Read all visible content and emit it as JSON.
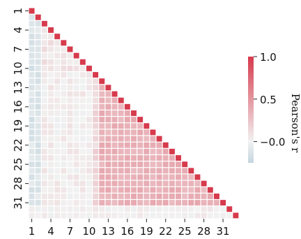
{
  "chart_data": {
    "type": "heatmap",
    "variant": "lower-triangle correlation matrix",
    "n": 33,
    "x_tick_labels": [
      "1",
      "4",
      "7",
      "10",
      "13",
      "16",
      "19",
      "22",
      "25",
      "28",
      "31"
    ],
    "y_tick_labels": [
      "1",
      "4",
      "7",
      "10",
      "13",
      "16",
      "19",
      "22",
      "25",
      "28",
      "31"
    ],
    "colorbar": {
      "label": "Pearson's r",
      "ticks": [
        "−0.0",
        "0.5",
        "1.0"
      ],
      "range": [
        -0.25,
        1.0
      ],
      "colors": {
        "low": "#c4d6de",
        "mid": "#f2f2f2",
        "high": "#d63a4c"
      }
    },
    "diagonal_value": 1.0,
    "cell_gap_color": "#ffffff",
    "note_values": "estimated from color: near-zero correlations for vars 1-10, moderate positive (0.2-0.45) block among vars 12-31, vars 32-33 weakly correlated"
  }
}
